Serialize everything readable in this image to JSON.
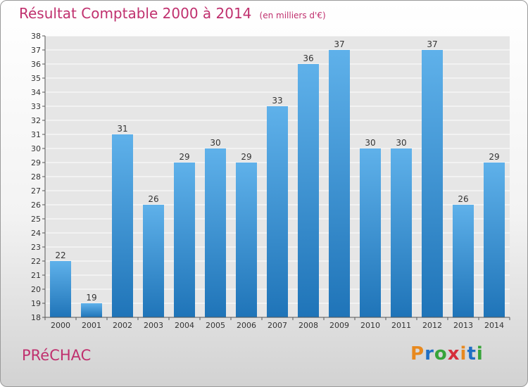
{
  "title": "Résultat Comptable 2000 à 2014",
  "subtitle": "(en milliers d'€)",
  "commune": "PRéCHAC",
  "logo": {
    "letters": [
      "P",
      "r",
      "o",
      "x",
      "i",
      "t",
      "i"
    ],
    "colors": [
      "#e8891e",
      "#1f6fc4",
      "#37a43a",
      "#d62e3b",
      "#e8891e",
      "#1f6fc4",
      "#37a43a"
    ]
  },
  "colors": {
    "title": "#c0306e",
    "bar_top": "#5fb1ea",
    "bar_bottom": "#1f74b8"
  },
  "chart_data": {
    "type": "bar",
    "title": "Résultat Comptable 2000 à 2014",
    "subtitle": "(en milliers d'€)",
    "categories": [
      "2000",
      "2001",
      "2002",
      "2003",
      "2004",
      "2005",
      "2006",
      "2007",
      "2008",
      "2009",
      "2010",
      "2011",
      "2012",
      "2013",
      "2014"
    ],
    "values": [
      22,
      19,
      31,
      26,
      29,
      30,
      29,
      33,
      36,
      37,
      30,
      30,
      37,
      26,
      29
    ],
    "ylim": [
      18,
      38
    ],
    "ytick_step": 1,
    "grid": true,
    "data_labels": true
  }
}
